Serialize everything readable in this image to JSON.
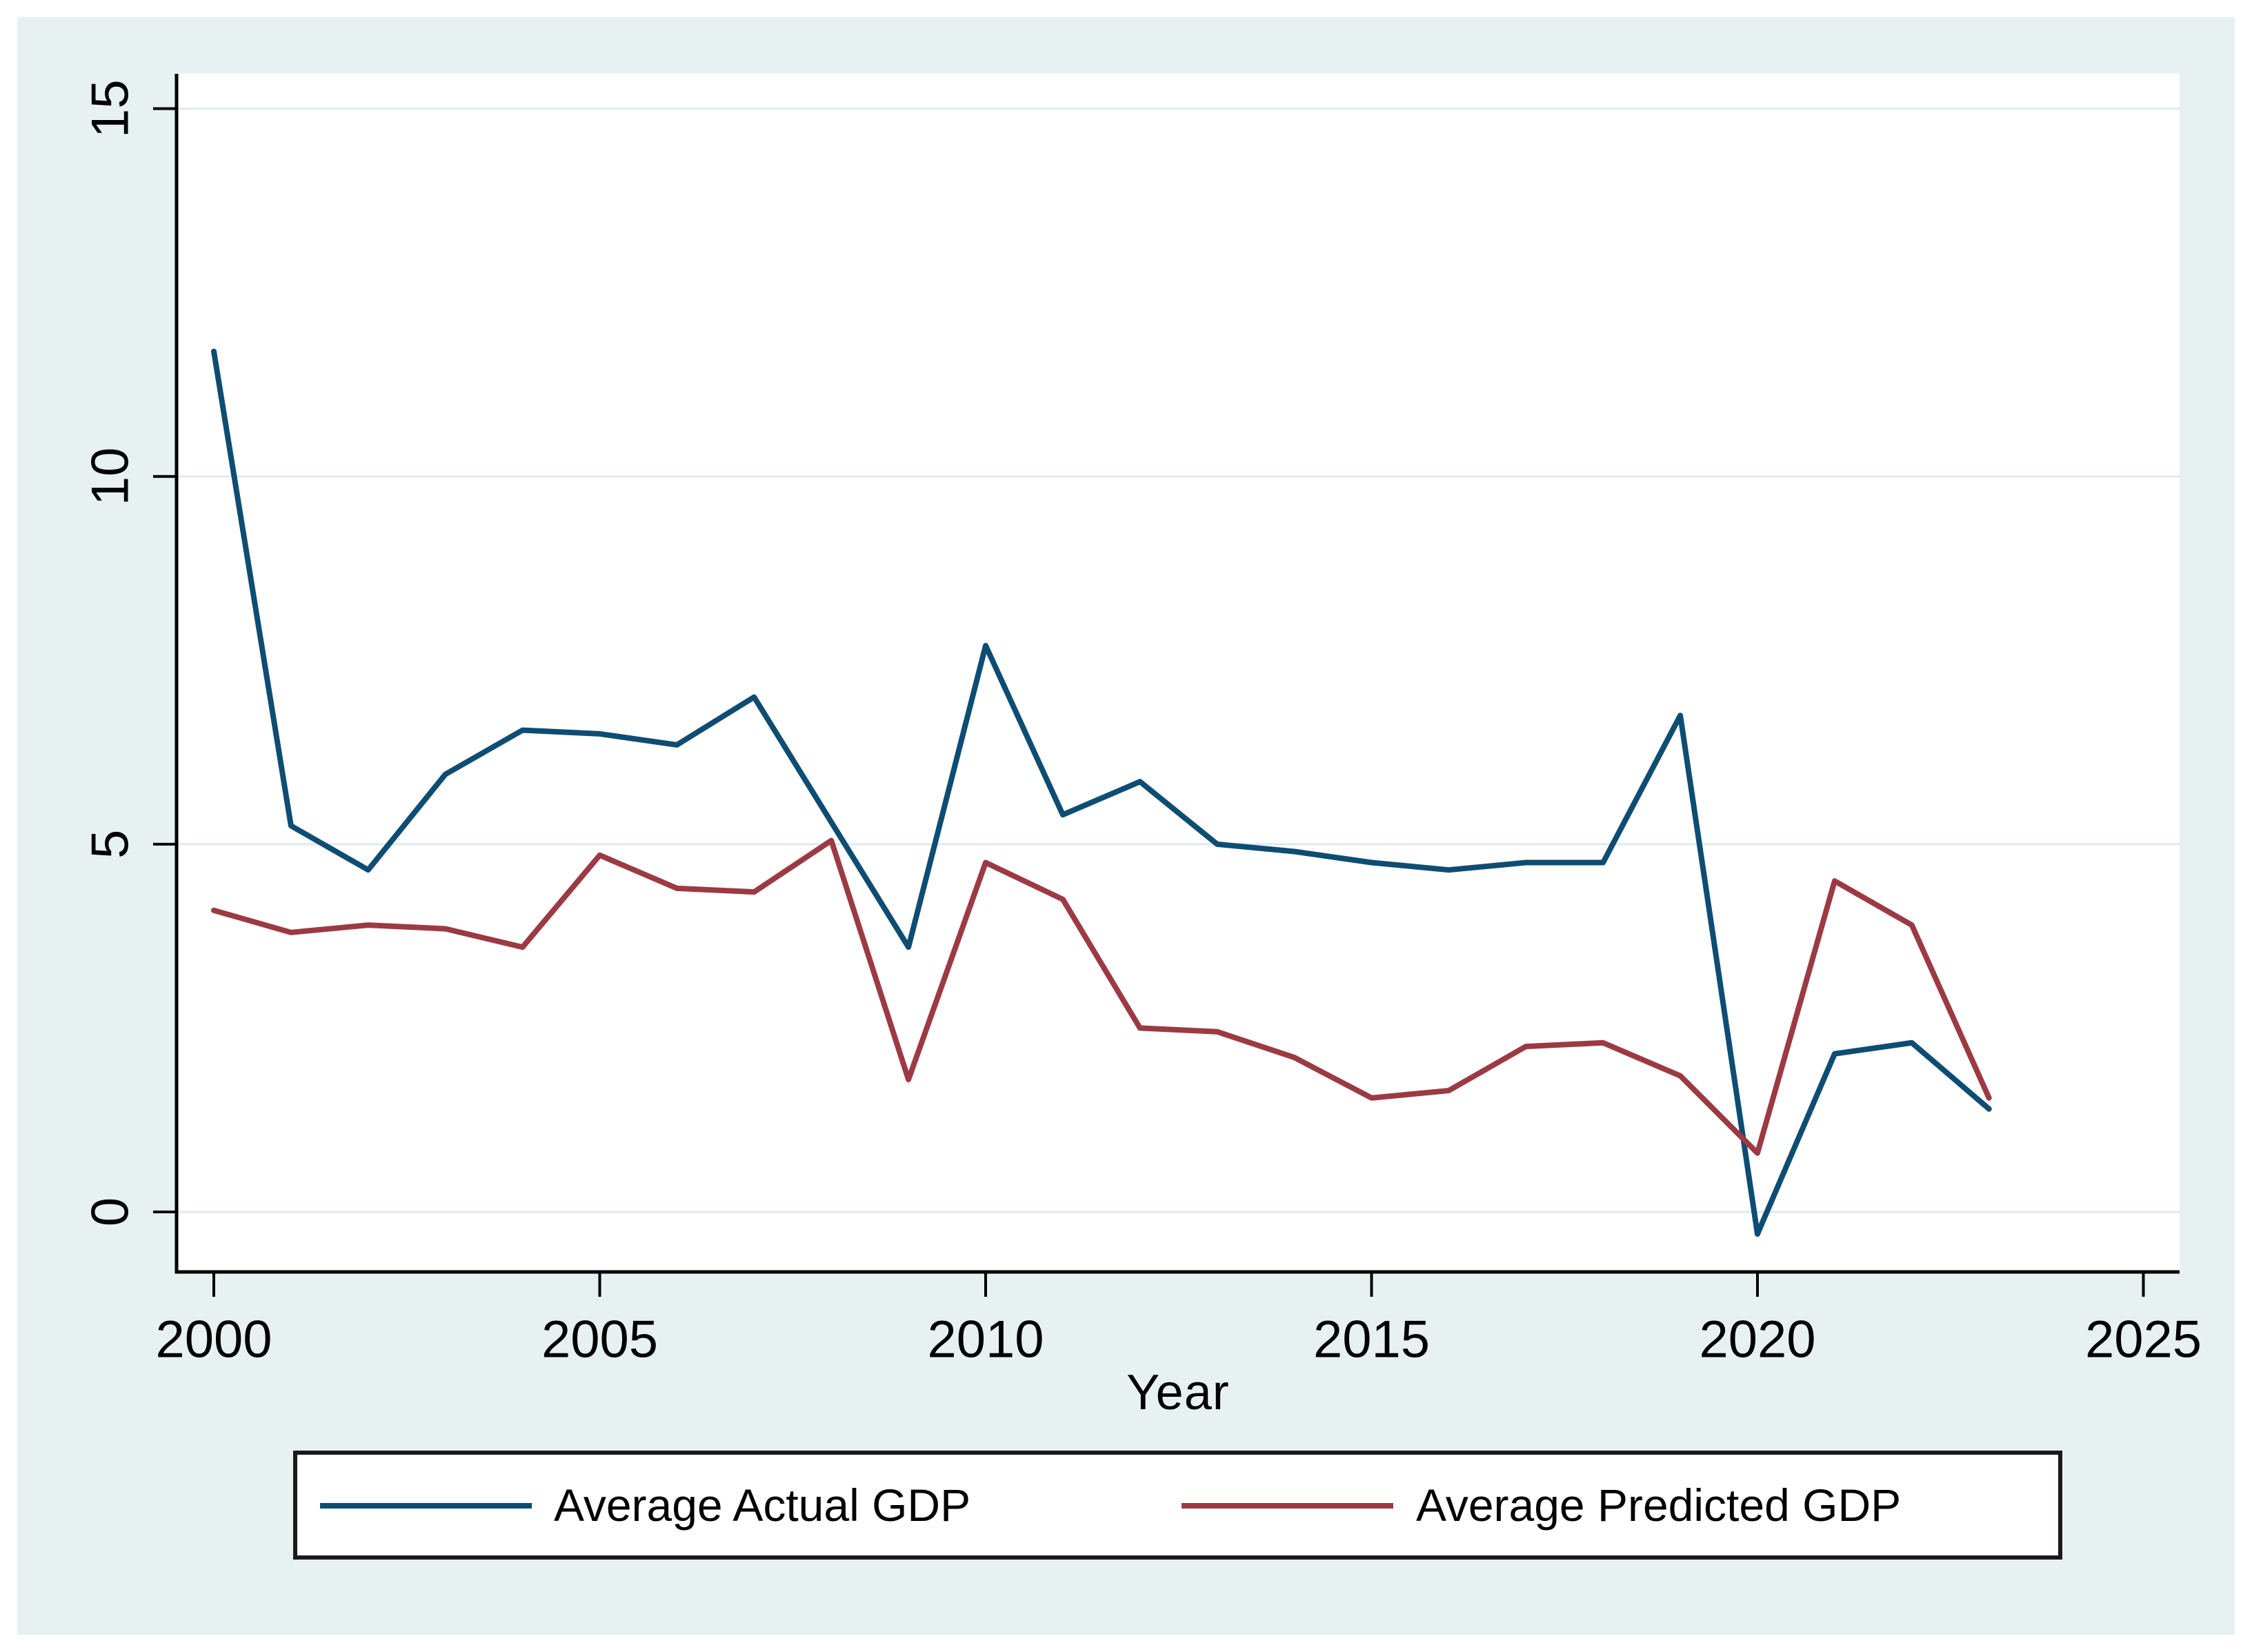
{
  "figure": {
    "canvas_background": "#e8f1f1",
    "plot_background": "#ffffff",
    "grid_color": "#dfeaec",
    "axis_color": "#000000",
    "text_color": "#000000",
    "legend_border_color": "#1a1a1a"
  },
  "chart_data": {
    "type": "line",
    "title": "",
    "xlabel": "Year",
    "ylabel": "",
    "grid": true,
    "legend_position": "bottom",
    "xlim": [
      1999.5,
      2025.5
    ],
    "ylim": [
      -0.8,
      15.5
    ],
    "x_ticks": [
      "2000",
      "2005",
      "2010",
      "2015",
      "2020",
      "2025"
    ],
    "y_ticks": [
      "0",
      "5",
      "10",
      "15"
    ],
    "x": [
      2000,
      2001,
      2002,
      2003,
      2004,
      2005,
      2006,
      2007,
      2008,
      2009,
      2010,
      2011,
      2012,
      2013,
      2014,
      2015,
      2016,
      2017,
      2018,
      2019,
      2020,
      2021,
      2022,
      2023
    ],
    "series": [
      {
        "name": "Average Actual GDP",
        "color": "#0e4d73",
        "values": [
          11.7,
          5.25,
          4.65,
          5.95,
          6.55,
          6.5,
          6.35,
          7.0,
          5.3,
          3.6,
          7.7,
          5.4,
          5.85,
          5.0,
          4.9,
          4.75,
          4.65,
          4.75,
          4.75,
          6.75,
          -0.3,
          2.15,
          2.3,
          1.4
        ]
      },
      {
        "name": "Average Predicted GDP",
        "color": "#9c3a44",
        "values": [
          4.1,
          3.8,
          3.9,
          3.85,
          3.6,
          4.85,
          4.4,
          4.35,
          5.05,
          1.8,
          4.75,
          4.25,
          2.5,
          2.45,
          2.1,
          1.55,
          1.65,
          2.25,
          2.3,
          1.85,
          0.8,
          4.5,
          3.9,
          1.55
        ]
      }
    ]
  }
}
